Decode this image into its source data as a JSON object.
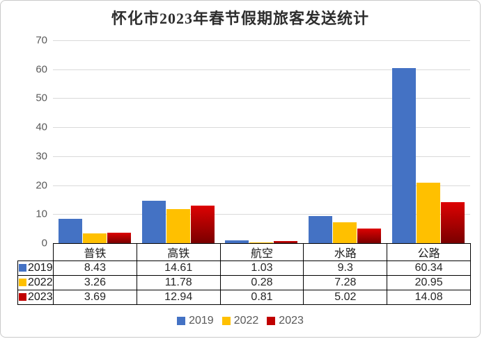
{
  "chart_data": {
    "type": "bar",
    "title": "怀化市2023年春节假期旅客发送统计",
    "categories": [
      "普铁",
      "高铁",
      "航空",
      "水路",
      "公路"
    ],
    "series": [
      {
        "name": "2019",
        "color": "#4472C4",
        "values": [
          8.43,
          14.61,
          1.03,
          9.3,
          60.34
        ]
      },
      {
        "name": "2022",
        "color": "#FFC000",
        "values": [
          3.26,
          11.78,
          0.28,
          7.28,
          20.95
        ]
      },
      {
        "name": "2023",
        "color": "#C00000",
        "gradient": [
          "#DD0202",
          "#7A0000"
        ],
        "values": [
          3.69,
          12.94,
          0.81,
          5.02,
          14.08
        ]
      }
    ],
    "ylim": [
      0,
      70
    ],
    "yticks": [
      0,
      10,
      20,
      30,
      40,
      50,
      60,
      70
    ],
    "grid": true,
    "gridline_color": "#D9D9D9",
    "axis_text_color": "#595959",
    "table_border_color": "#000000",
    "legend_position": "bottom",
    "data_table_shown": true
  }
}
